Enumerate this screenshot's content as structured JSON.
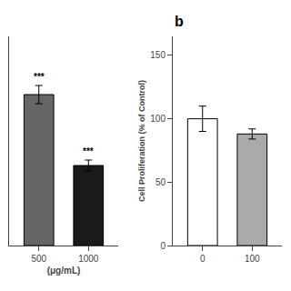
{
  "chart_data": [
    {
      "type": "bar",
      "categories": [
        "500",
        "1000"
      ],
      "values": [
        83,
        44
      ],
      "errors": [
        5,
        3
      ],
      "colors": [
        "#666666",
        "#1a1a1a"
      ],
      "annotations": [
        {
          "category": "500",
          "text": "***"
        },
        {
          "category": "1000",
          "text": "***"
        }
      ],
      "xlabel": "(μg/mL)",
      "ylim": [
        0,
        115
      ],
      "tick_labels": "x",
      "grid": false
    },
    {
      "type": "bar",
      "title": "b",
      "categories": [
        "0",
        "100"
      ],
      "values": [
        100,
        88
      ],
      "errors": [
        10,
        4
      ],
      "colors": [
        "#ffffff",
        "#aaaaaa"
      ],
      "ylabel": "Cell Proliferation (% of Control)",
      "ylim": [
        0,
        165
      ],
      "yticks": [
        0,
        50,
        100,
        150
      ],
      "grid": false
    }
  ]
}
